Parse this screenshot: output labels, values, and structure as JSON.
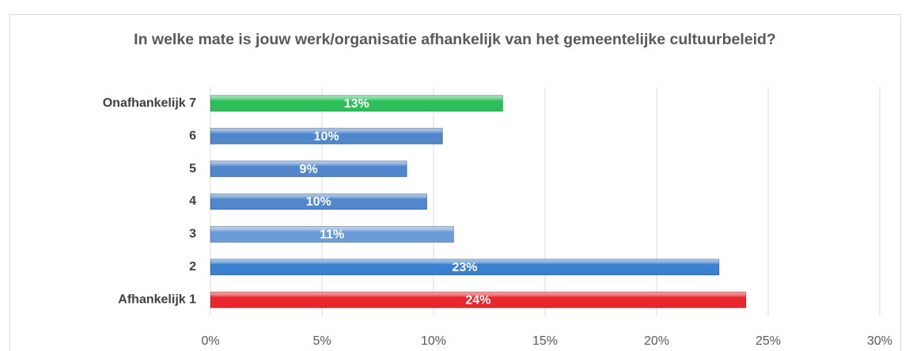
{
  "chart_data": {
    "type": "hbar",
    "title": "In welke mate is jouw werk/organisatie afhankelijk van het gemeentelijke cultuurbeleid?",
    "categories": [
      "Afhankelijk 1",
      "2",
      "3",
      "4",
      "5",
      "6",
      "Onafhankelijk 7"
    ],
    "values": [
      24.0,
      22.8,
      10.9,
      9.7,
      8.8,
      10.4,
      13.1
    ],
    "value_labels": [
      "24%",
      "23%",
      "11%",
      "10%",
      "9%",
      "10%",
      "13%"
    ],
    "colors": [
      "#e8262b",
      "#3a7fd0",
      "#6a9bd8",
      "#4f86cc",
      "#4f86cc",
      "#4f86cc",
      "#2fbf5a"
    ],
    "xlim": [
      0,
      30
    ],
    "xticks": [
      {
        "value": 0,
        "label": "0%"
      },
      {
        "value": 5,
        "label": "5%"
      },
      {
        "value": 10,
        "label": "10%"
      },
      {
        "value": 15,
        "label": "15%"
      },
      {
        "value": 20,
        "label": "20%"
      },
      {
        "value": 25,
        "label": "25%"
      },
      {
        "value": 30,
        "label": "30%"
      }
    ],
    "grid": true
  }
}
